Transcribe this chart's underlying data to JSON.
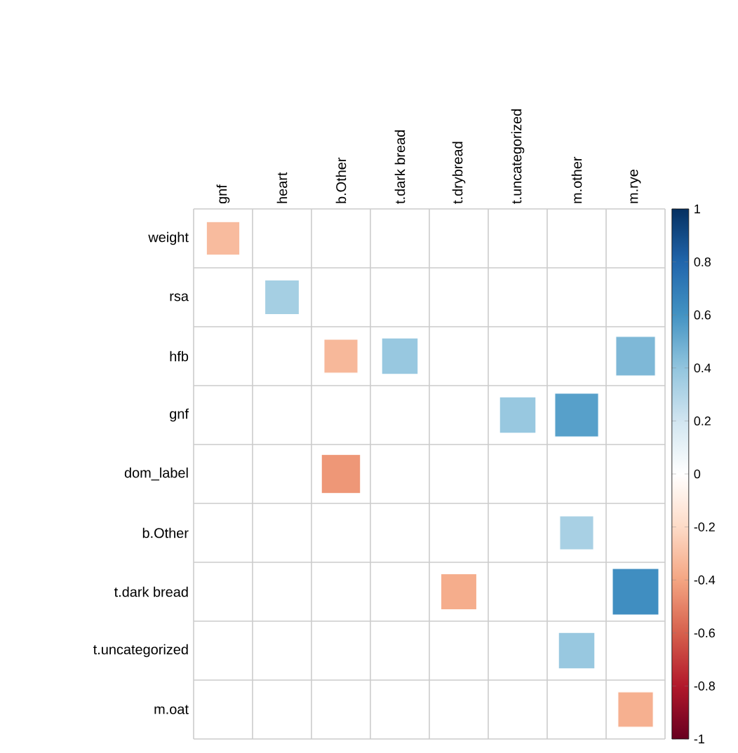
{
  "chart_data": {
    "type": "heatmap",
    "categories": [
      "gnf",
      "heart",
      "b.Other",
      "t.dark bread",
      "t.drybread",
      "t.uncategorized",
      "m.other",
      "m.rye"
    ],
    "y_categories": [
      "weight",
      "rsa",
      "hfb",
      "gnf",
      "dom_label",
      "b.Other",
      "t.dark bread",
      "t.uncategorized",
      "m.oat"
    ],
    "cells": [
      [
        -0.32,
        null,
        null,
        null,
        null,
        null,
        null,
        null
      ],
      [
        null,
        0.34,
        null,
        null,
        null,
        null,
        null,
        null
      ],
      [
        null,
        null,
        -0.33,
        0.38,
        null,
        null,
        null,
        0.45
      ],
      [
        null,
        null,
        null,
        null,
        null,
        0.38,
        0.55,
        null
      ],
      [
        null,
        null,
        -0.44,
        null,
        null,
        null,
        null,
        null
      ],
      [
        null,
        null,
        null,
        null,
        null,
        null,
        0.33,
        null
      ],
      [
        null,
        null,
        null,
        null,
        -0.37,
        null,
        null,
        0.62
      ],
      [
        null,
        null,
        null,
        null,
        null,
        null,
        0.38,
        null
      ],
      [
        null,
        null,
        null,
        null,
        null,
        null,
        null,
        -0.36
      ]
    ],
    "clim": [
      -1,
      1
    ],
    "cticks": [
      -1,
      -0.8,
      -0.6,
      -0.4,
      -0.2,
      0,
      0.2,
      0.4,
      0.6,
      0.8,
      1
    ],
    "grid": true
  }
}
